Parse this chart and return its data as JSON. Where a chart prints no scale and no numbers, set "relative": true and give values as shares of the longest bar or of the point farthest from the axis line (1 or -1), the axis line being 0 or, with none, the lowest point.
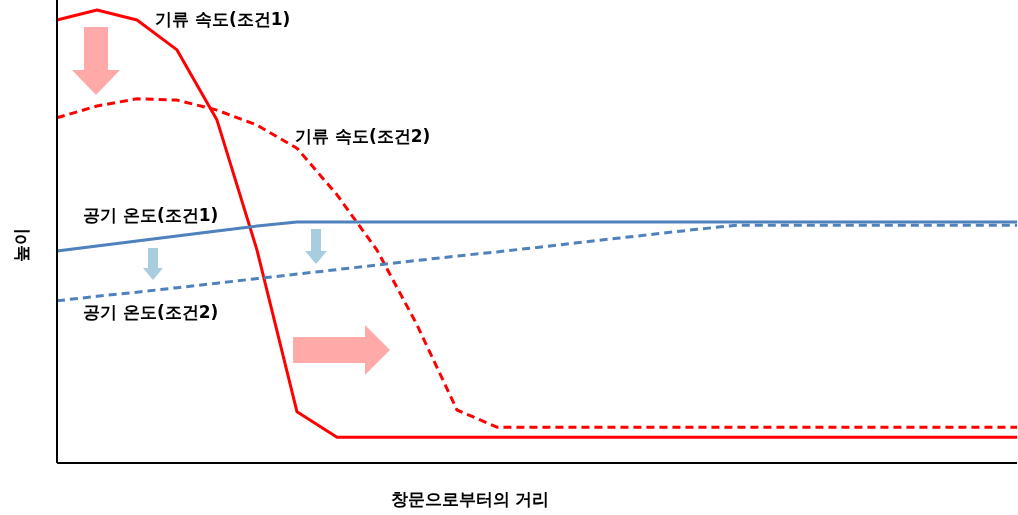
{
  "chart_data": {
    "type": "line",
    "relative": true,
    "xlabel": "창문으로부터의 거리",
    "ylabel": "높이",
    "categories": [
      null,
      null,
      null,
      null,
      null,
      null,
      null,
      null,
      null,
      null,
      null,
      null,
      null,
      null,
      null,
      null,
      null,
      null,
      null,
      null,
      null,
      null,
      null,
      null,
      null
    ],
    "series": [
      {
        "name": "기류 속도(조건1)",
        "color": "#ff0000",
        "line_style": "solid",
        "values": [
          0.978,
          1,
          0.978,
          0.912,
          0.757,
          0.47,
          0.113,
          0.057,
          0.057,
          0.057,
          0.057,
          0.057,
          0.057,
          0.057,
          0.057,
          0.057,
          0.057,
          0.057,
          0.057,
          0.057,
          0.057,
          0.057,
          0.057,
          0.057,
          0.057
        ]
      },
      {
        "name": "기류 속도(조건2)",
        "color": "#ff0000",
        "line_style": "dashed",
        "values": [
          0.762,
          0.788,
          0.804,
          0.801,
          0.779,
          0.746,
          0.695,
          0.592,
          0.47,
          0.305,
          0.117,
          0.079,
          0.079,
          0.079,
          0.079,
          0.079,
          0.079,
          0.079,
          0.079,
          0.079,
          0.079,
          0.079,
          0.079,
          0.079,
          0.079
        ]
      },
      {
        "name": "공기 온도(조건1)",
        "color": "#4f81bd",
        "line_style": "solid",
        "values": [
          0.468,
          0.479,
          0.49,
          0.501,
          0.512,
          0.523,
          0.532,
          0.532,
          0.532,
          0.532,
          0.532,
          0.532,
          0.532,
          0.532,
          0.532,
          0.532,
          0.532,
          0.532,
          0.532,
          0.532,
          0.532,
          0.532,
          0.532,
          0.532,
          0.532
        ]
      },
      {
        "name": "공기 온도(조건2)",
        "color": "#4f81bd",
        "line_style": "dashed",
        "values": [
          0.358,
          0.368,
          0.377,
          0.387,
          0.397,
          0.407,
          0.417,
          0.427,
          0.437,
          0.447,
          0.457,
          0.466,
          0.476,
          0.486,
          0.496,
          0.506,
          0.516,
          0.525,
          0.525,
          0.525,
          0.525,
          0.525,
          0.525,
          0.525,
          0.525
        ]
      }
    ]
  }
}
